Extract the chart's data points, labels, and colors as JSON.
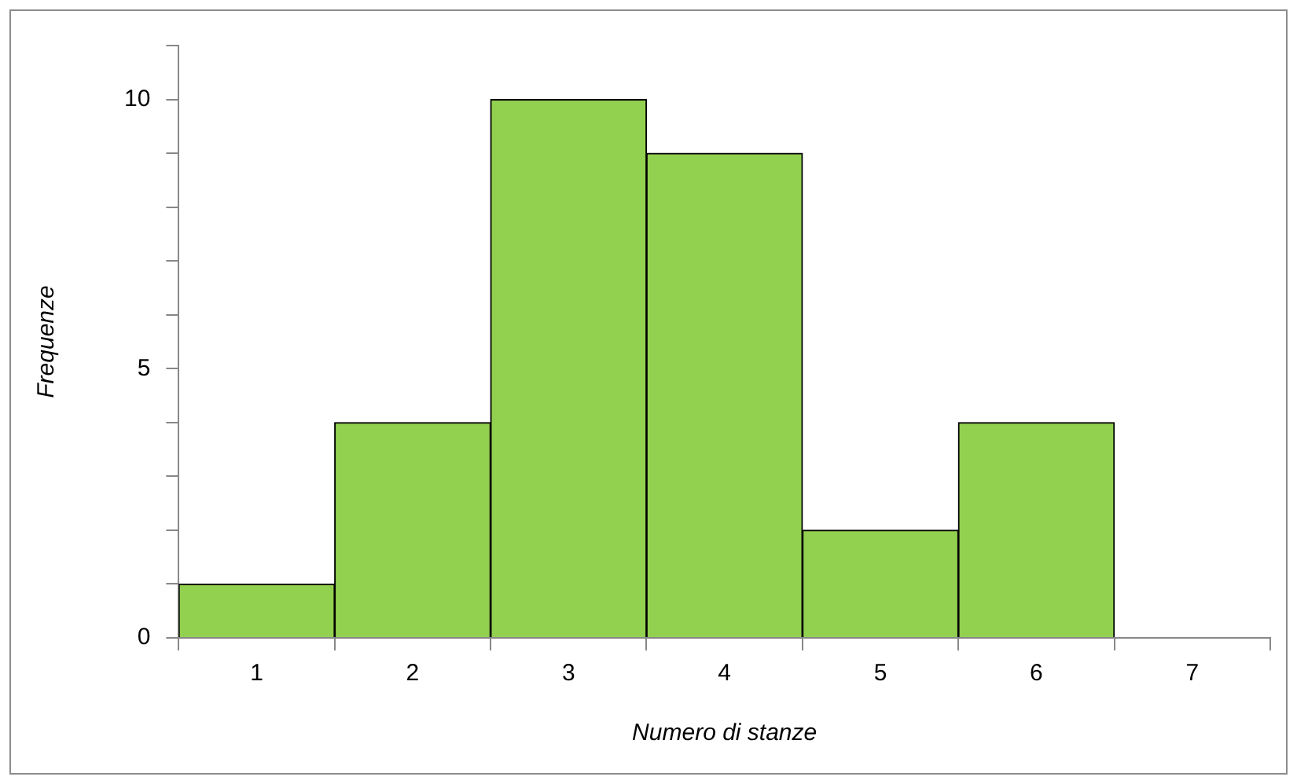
{
  "chart_data": {
    "type": "bar",
    "xlabel": "Numero di stanze",
    "ylabel": "Frequenze",
    "categories": [
      "1",
      "2",
      "3",
      "4",
      "5",
      "6",
      "7"
    ],
    "values": [
      1,
      4,
      10,
      9,
      2,
      4,
      0
    ],
    "color": "#92d050",
    "ylim": [
      0,
      11
    ],
    "yticks": [
      0,
      {
        "value": 1,
        "label": null
      },
      {
        "value": 2,
        "label": null
      },
      {
        "value": 3,
        "label": null
      },
      {
        "value": 4,
        "label": null
      },
      5,
      {
        "value": 6,
        "label": null
      },
      {
        "value": 7,
        "label": null
      },
      {
        "value": 8,
        "label": null
      },
      {
        "value": 9,
        "label": null
      },
      10,
      {
        "value": 11,
        "label": null
      }
    ],
    "grid": false,
    "legend": false
  }
}
